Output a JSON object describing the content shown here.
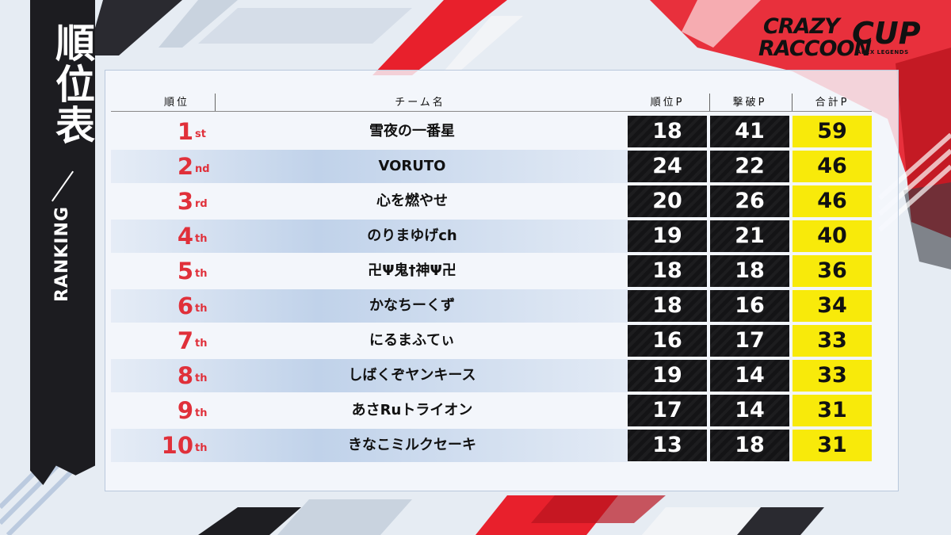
{
  "side": {
    "title": "順位表",
    "subtitle": "RANKING"
  },
  "logo": {
    "line1": "CRAZY",
    "line2": "RACCOON",
    "line3": "CUP",
    "line4": "APEX LEGENDS"
  },
  "header": {
    "rank": "順位",
    "team": "チーム名",
    "placement_points": "順位P",
    "kill_points": "撃破P",
    "total_points": "合計P"
  },
  "colors": {
    "rank_red": "#e0303a",
    "total_yellow": "#f8ea0a",
    "cell_dark": "#141416"
  },
  "rows": [
    {
      "rank": "1",
      "suffix": "st",
      "team": "雪夜の一番星",
      "placement": "18",
      "kills": "41",
      "total": "59"
    },
    {
      "rank": "2",
      "suffix": "nd",
      "team": "VORUTO",
      "placement": "24",
      "kills": "22",
      "total": "46"
    },
    {
      "rank": "3",
      "suffix": "rd",
      "team": "心を燃やせ",
      "placement": "20",
      "kills": "26",
      "total": "46"
    },
    {
      "rank": "4",
      "suffix": "th",
      "team": "のりまゆげch",
      "placement": "19",
      "kills": "21",
      "total": "40"
    },
    {
      "rank": "5",
      "suffix": "th",
      "team": "卍Ψ鬼†神Ψ卍",
      "placement": "18",
      "kills": "18",
      "total": "36"
    },
    {
      "rank": "6",
      "suffix": "th",
      "team": "かなちーくず",
      "placement": "18",
      "kills": "16",
      "total": "34"
    },
    {
      "rank": "7",
      "suffix": "th",
      "team": "にるまふてぃ",
      "placement": "16",
      "kills": "17",
      "total": "33"
    },
    {
      "rank": "8",
      "suffix": "th",
      "team": "しばくぞヤンキース",
      "placement": "19",
      "kills": "14",
      "total": "33"
    },
    {
      "rank": "9",
      "suffix": "th",
      "team": "あさRuトライオン",
      "placement": "17",
      "kills": "14",
      "total": "31"
    },
    {
      "rank": "10",
      "suffix": "th",
      "team": "きなこミルクセーキ",
      "placement": "13",
      "kills": "18",
      "total": "31"
    }
  ]
}
